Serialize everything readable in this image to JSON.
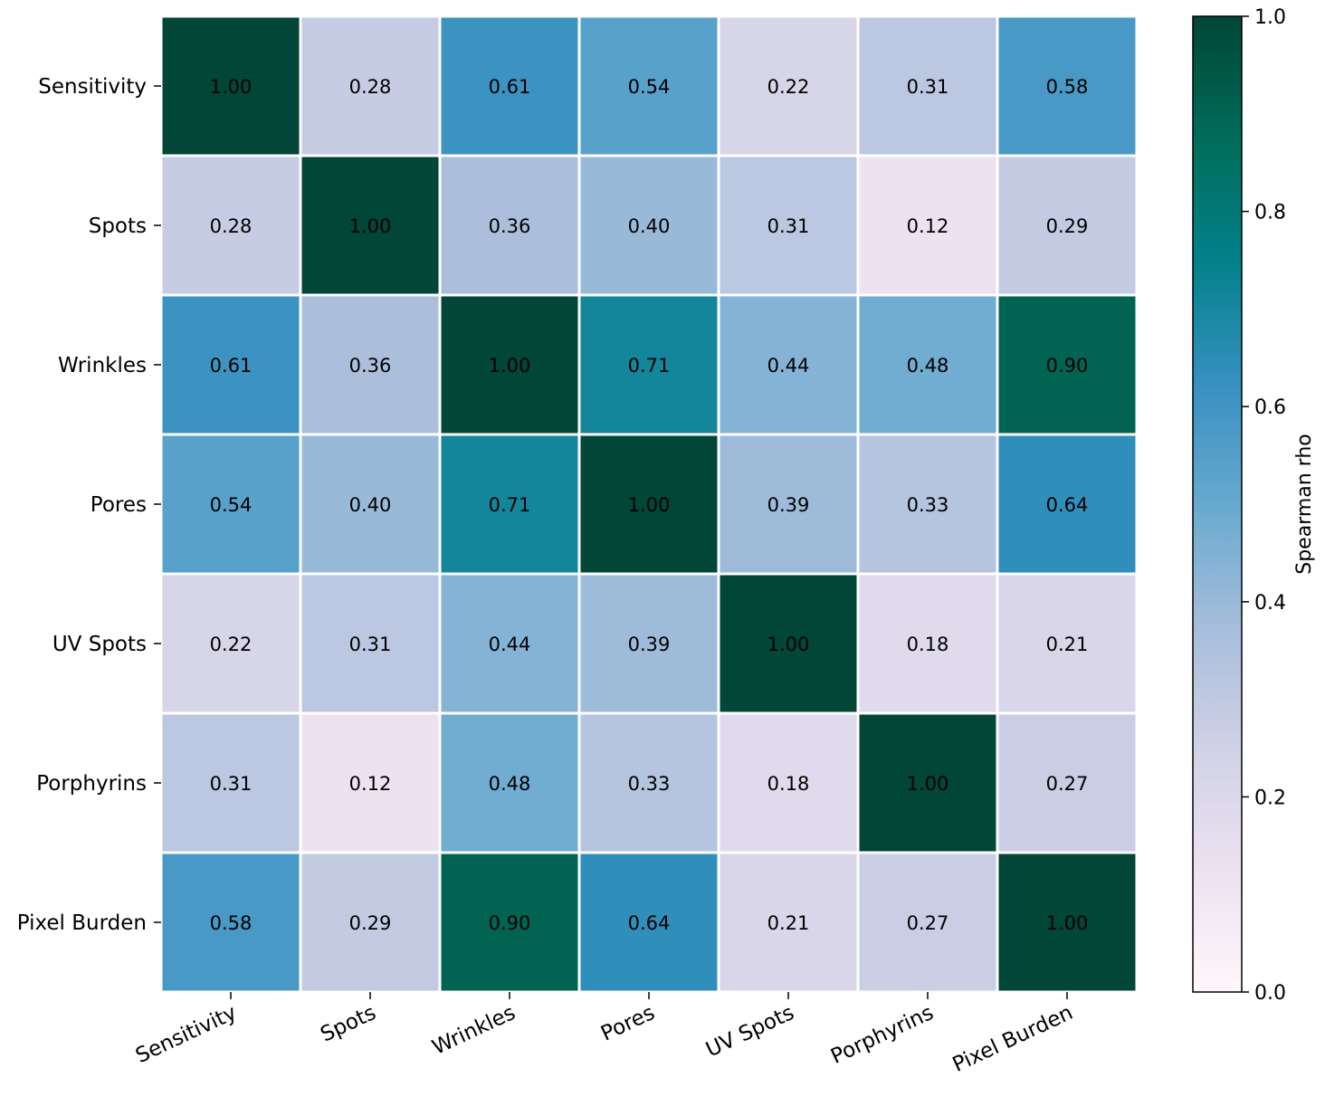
{
  "chart_data": {
    "type": "heatmap",
    "title": "",
    "xlabel": "",
    "ylabel": "",
    "categories": [
      "Sensitivity",
      "Spots",
      "Wrinkles",
      "Pores",
      "UV Spots",
      "Porphyrins",
      "Pixel Burden"
    ],
    "matrix": [
      [
        1.0,
        0.28,
        0.61,
        0.54,
        0.22,
        0.31,
        0.58
      ],
      [
        0.28,
        1.0,
        0.36,
        0.4,
        0.31,
        0.12,
        0.29
      ],
      [
        0.61,
        0.36,
        1.0,
        0.71,
        0.44,
        0.48,
        0.9
      ],
      [
        0.54,
        0.4,
        0.71,
        1.0,
        0.39,
        0.33,
        0.64
      ],
      [
        0.22,
        0.31,
        0.44,
        0.39,
        1.0,
        0.18,
        0.21
      ],
      [
        0.31,
        0.12,
        0.48,
        0.33,
        0.18,
        1.0,
        0.27
      ],
      [
        0.58,
        0.29,
        0.9,
        0.64,
        0.21,
        0.27,
        1.0
      ]
    ],
    "colorbar": {
      "label": "Spearman rho",
      "range": [
        0.0,
        1.0
      ],
      "ticks": [
        "0.0",
        "0.2",
        "0.4",
        "0.6",
        "0.8",
        "1.0"
      ],
      "colormap": "PuBuGn"
    },
    "value_format": "2 decimals"
  }
}
